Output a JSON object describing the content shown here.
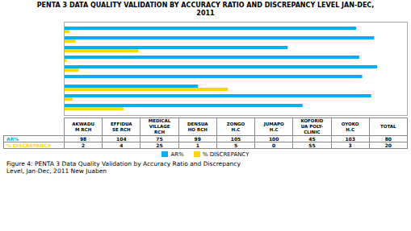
{
  "chart_data": {
    "type": "bar",
    "orientation": "horizontal",
    "title": "PENTA 3 DATA QUALITY VALIDATION BY ACCURACY RATIO AND DISCREPANCY LEVEL JAN-DEC,\n2011",
    "caption": "Figure 4: PENTA 3 Data Quality Validation by Accuracy Ratio and Discrepancy\nLevel, Jan-Dec, 2011 New Juaben",
    "categories": [
      "AKWADU\nM RCH",
      "EFFIDUA\nSE RCH",
      "MEDICAL\nVILLAGE\nRCH",
      "DENSUA\nHO RCH",
      "ZONGO\nH.C",
      "JUMAPO\nH.C",
      "KOFORID\nUA POLY-\nCLINIC",
      "OYOKO\nH.C",
      "TOTAL"
    ],
    "series": [
      {
        "name": "AR%",
        "color": "#00B0F0",
        "values": [
          98,
          104,
          75,
          99,
          105,
          100,
          45,
          103,
          80
        ]
      },
      {
        "name": "% DISCREPANCY",
        "color": "#FFD700",
        "values": [
          2,
          4,
          25,
          1,
          5,
          0,
          55,
          3,
          20
        ]
      }
    ],
    "xlim": [
      0,
      115
    ],
    "grid": false,
    "legend": "bottom",
    "tick_labels": false
  }
}
